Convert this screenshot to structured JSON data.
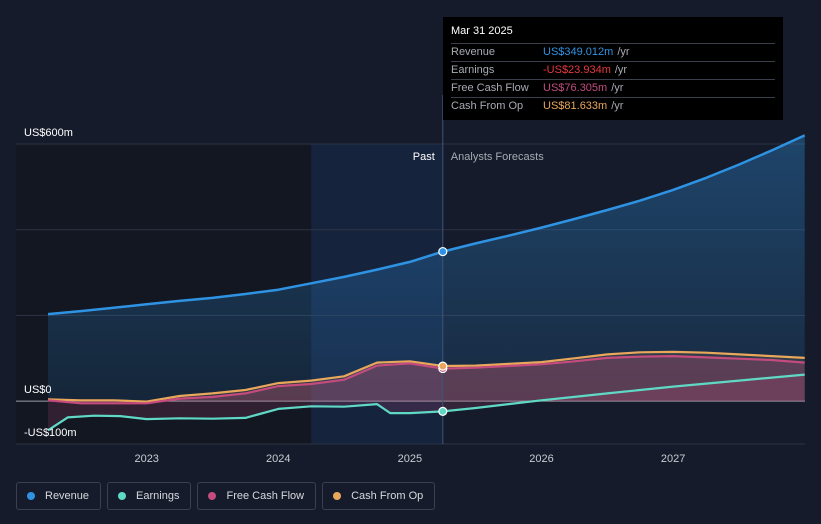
{
  "tooltip": {
    "date": "Mar 31 2025",
    "rows": [
      {
        "label": "Revenue",
        "value": "US$349.012m",
        "unit": "/yr",
        "color": "#2f93e3"
      },
      {
        "label": "Earnings",
        "value": "-US$23.934m",
        "unit": "/yr",
        "color": "#e8383d"
      },
      {
        "label": "Free Cash Flow",
        "value": "US$76.305m",
        "unit": "/yr",
        "color": "#c44b7d"
      },
      {
        "label": "Cash From Op",
        "value": "US$81.633m",
        "unit": "/yr",
        "color": "#e9a75b"
      }
    ]
  },
  "legend": [
    {
      "label": "Revenue",
      "color": "#2f93e3"
    },
    {
      "label": "Earnings",
      "color": "#5fd9c5"
    },
    {
      "label": "Free Cash Flow",
      "color": "#c44b7d"
    },
    {
      "label": "Cash From Op",
      "color": "#e9a75b"
    }
  ],
  "chart_data": {
    "type": "line",
    "section_labels": {
      "past": "Past",
      "forecast": "Analysts Forecasts"
    },
    "ytick_labels": [
      {
        "value": 600,
        "label": "US$600m"
      },
      {
        "value": 0,
        "label": "US$0"
      },
      {
        "value": -100,
        "label": "-US$100m"
      }
    ],
    "ylim": [
      -100,
      600
    ],
    "xlim": [
      2022.25,
      2028.0
    ],
    "xticks": [
      2023,
      2024,
      2025,
      2026,
      2027
    ],
    "past_start": 2024.25,
    "divider_x": 2025.25,
    "grid": true,
    "series": [
      {
        "name": "Revenue",
        "color": "#2f93e3",
        "points": [
          [
            2022.25,
            203
          ],
          [
            2022.5,
            210
          ],
          [
            2022.75,
            218
          ],
          [
            2023.0,
            226
          ],
          [
            2023.25,
            234
          ],
          [
            2023.5,
            241
          ],
          [
            2023.75,
            250
          ],
          [
            2024.0,
            260
          ],
          [
            2024.25,
            275
          ],
          [
            2024.5,
            290
          ],
          [
            2024.75,
            307
          ],
          [
            2025.0,
            325
          ],
          [
            2025.25,
            349
          ],
          [
            2025.5,
            368
          ],
          [
            2025.75,
            386
          ],
          [
            2026.0,
            405
          ],
          [
            2026.25,
            425
          ],
          [
            2026.5,
            446
          ],
          [
            2026.75,
            468
          ],
          [
            2027.0,
            493
          ],
          [
            2027.25,
            521
          ],
          [
            2027.5,
            552
          ],
          [
            2027.75,
            585
          ],
          [
            2028.0,
            620
          ]
        ]
      },
      {
        "name": "Earnings",
        "color": "#5fd9c5",
        "points": [
          [
            2022.25,
            -68
          ],
          [
            2022.4,
            -38
          ],
          [
            2022.6,
            -34
          ],
          [
            2022.8,
            -35
          ],
          [
            2023.0,
            -42
          ],
          [
            2023.25,
            -40
          ],
          [
            2023.5,
            -41
          ],
          [
            2023.75,
            -39
          ],
          [
            2024.0,
            -18
          ],
          [
            2024.25,
            -12
          ],
          [
            2024.5,
            -13
          ],
          [
            2024.75,
            -7
          ],
          [
            2024.85,
            -28
          ],
          [
            2025.0,
            -28
          ],
          [
            2025.25,
            -24
          ],
          [
            2025.5,
            -16
          ],
          [
            2025.75,
            -7
          ],
          [
            2026.0,
            2
          ],
          [
            2026.25,
            10
          ],
          [
            2026.5,
            18
          ],
          [
            2026.75,
            26
          ],
          [
            2027.0,
            34
          ],
          [
            2027.25,
            41
          ],
          [
            2027.5,
            48
          ],
          [
            2027.75,
            55
          ],
          [
            2028.0,
            62
          ]
        ]
      },
      {
        "name": "Free Cash Flow",
        "color": "#c44b7d",
        "points": [
          [
            2022.25,
            2
          ],
          [
            2022.5,
            -5
          ],
          [
            2022.75,
            -5
          ],
          [
            2023.0,
            -5
          ],
          [
            2023.25,
            6
          ],
          [
            2023.5,
            10
          ],
          [
            2023.75,
            18
          ],
          [
            2024.0,
            35
          ],
          [
            2024.25,
            40
          ],
          [
            2024.5,
            50
          ],
          [
            2024.75,
            83
          ],
          [
            2025.0,
            88
          ],
          [
            2025.25,
            76
          ],
          [
            2025.5,
            78
          ],
          [
            2025.75,
            82
          ],
          [
            2026.0,
            86
          ],
          [
            2026.25,
            93
          ],
          [
            2026.5,
            101
          ],
          [
            2026.75,
            104
          ],
          [
            2027.0,
            105
          ],
          [
            2027.25,
            102
          ],
          [
            2027.5,
            99
          ],
          [
            2027.75,
            96
          ],
          [
            2028.0,
            90
          ]
        ]
      },
      {
        "name": "Cash From Op",
        "color": "#e9a75b",
        "points": [
          [
            2022.25,
            4
          ],
          [
            2022.5,
            2
          ],
          [
            2022.75,
            2
          ],
          [
            2023.0,
            -1
          ],
          [
            2023.25,
            12
          ],
          [
            2023.5,
            18
          ],
          [
            2023.75,
            26
          ],
          [
            2024.0,
            42
          ],
          [
            2024.25,
            48
          ],
          [
            2024.5,
            58
          ],
          [
            2024.75,
            90
          ],
          [
            2025.0,
            93
          ],
          [
            2025.25,
            82
          ],
          [
            2025.5,
            83
          ],
          [
            2025.75,
            87
          ],
          [
            2026.0,
            91
          ],
          [
            2026.25,
            100
          ],
          [
            2026.5,
            109
          ],
          [
            2026.75,
            114
          ],
          [
            2027.0,
            115
          ],
          [
            2027.25,
            113
          ],
          [
            2027.5,
            109
          ],
          [
            2027.75,
            105
          ],
          [
            2028.0,
            101
          ]
        ]
      }
    ],
    "markers": [
      {
        "series": "Revenue",
        "x": 2025.25,
        "y": 349.012
      },
      {
        "series": "Earnings",
        "x": 2025.25,
        "y": -23.934
      },
      {
        "series": "Free Cash Flow",
        "x": 2025.25,
        "y": 76.305
      },
      {
        "series": "Cash From Op",
        "x": 2025.25,
        "y": 81.633
      }
    ]
  }
}
